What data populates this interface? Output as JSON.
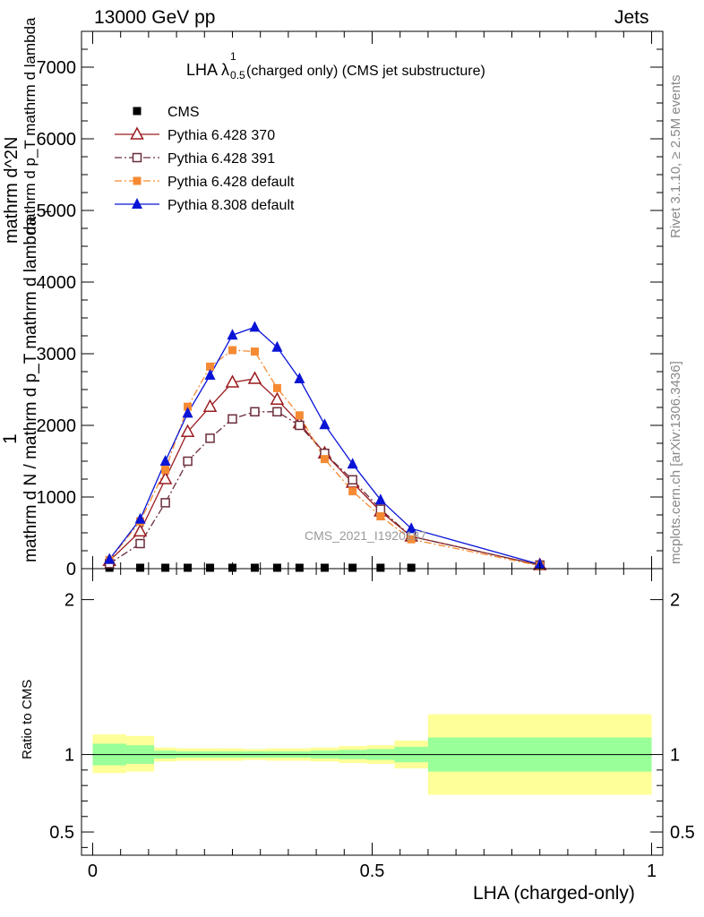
{
  "header": {
    "left": "13000 GeV pp",
    "right": "Jets"
  },
  "title_main": "LHA λ",
  "title_sup": "1",
  "title_sub": "0.5",
  "title_rest": "(charged only) (CMS jet substructure)",
  "side_top": "Rivet 3.1.10, ≥ 2.5M events",
  "side_bottom": "mcplots.cern.ch [arXiv:1306.3436]",
  "watermark": "CMS_2021_I1920187",
  "ylabel_main": {
    "num": "1",
    "den": "mathrm d N / mathrm d p_T mathrm d lambda",
    "den_sub": "T",
    "over_top": "mathrm d^2N",
    "over_mid": "mathrm d p_T mathrm d lambda"
  },
  "ylabel_ratio": "Ratio to CMS",
  "xlabel": "LHA (charged-only)",
  "colors": {
    "cms": "#000000",
    "p370": "#9b1b1f",
    "p391": "#6b2d3a",
    "pdef": "#f58a33",
    "p8": "#0a14d6",
    "band_inner": "#99ff99",
    "band_outer": "#ffff99"
  },
  "chart_data": [
    {
      "type": "line",
      "xlim": [
        -0.02,
        1.02
      ],
      "ylim": [
        0,
        7500
      ],
      "yticks": [
        {
          "v": 0,
          "label": "0"
        },
        {
          "v": 1000,
          "label": "1000"
        },
        {
          "v": 2000,
          "label": "2000"
        },
        {
          "v": 3000,
          "label": "3000"
        },
        {
          "v": 4000,
          "label": "4000"
        },
        {
          "v": 5000,
          "label": "5000"
        },
        {
          "v": 6000,
          "label": "6000"
        },
        {
          "v": 7000,
          "label": "7000"
        }
      ],
      "x": [
        0.03,
        0.085,
        0.13,
        0.17,
        0.21,
        0.25,
        0.29,
        0.33,
        0.37,
        0.415,
        0.465,
        0.515,
        0.57,
        0.8
      ],
      "series": [
        {
          "name": "CMS",
          "marker": "square-filled",
          "style": "none",
          "values": [
            20,
            20,
            20,
            20,
            20,
            20,
            20,
            20,
            20,
            20,
            20,
            20,
            20,
            null
          ]
        },
        {
          "name": "Pythia 6.428 370",
          "marker": "triangle-open",
          "style": "solid",
          "values": [
            110,
            520,
            1250,
            1910,
            2260,
            2600,
            2650,
            2360,
            2030,
            1610,
            1200,
            800,
            450,
            50
          ]
        },
        {
          "name": "Pythia 6.428 391",
          "marker": "square-open",
          "style": "dashdot",
          "values": [
            70,
            350,
            920,
            1500,
            1820,
            2090,
            2190,
            2190,
            2000,
            1610,
            1240,
            830,
            450,
            50
          ]
        },
        {
          "name": "Pythia 6.428 default",
          "marker": "square-filled",
          "style": "dashdot",
          "values": [
            120,
            660,
            1380,
            2260,
            2820,
            3050,
            3030,
            2520,
            2140,
            1530,
            1080,
            730,
            410,
            40
          ]
        },
        {
          "name": "Pythia 8.308 default",
          "marker": "triangle-filled",
          "style": "solid",
          "values": [
            130,
            690,
            1500,
            2170,
            2700,
            3260,
            3370,
            3090,
            2650,
            2010,
            1460,
            960,
            560,
            60
          ]
        }
      ]
    },
    {
      "type": "area",
      "xlim": [
        -0.02,
        1.02
      ],
      "ylim": [
        0.35,
        2.2
      ],
      "yticks": [
        {
          "v": 0.5,
          "label": "0.5"
        },
        {
          "v": 1,
          "label": "1"
        },
        {
          "v": 2,
          "label": "2"
        }
      ],
      "xticks": [
        {
          "v": 0,
          "label": "0"
        },
        {
          "v": 0.5,
          "label": "0.5"
        },
        {
          "v": 1,
          "label": "1"
        }
      ],
      "reference": 1,
      "bins": [
        {
          "x0": 0.0,
          "x1": 0.06,
          "inner": [
            0.93,
            1.07
          ],
          "outer": [
            0.88,
            1.13
          ]
        },
        {
          "x0": 0.06,
          "x1": 0.11,
          "inner": [
            0.94,
            1.06
          ],
          "outer": [
            0.89,
            1.12
          ]
        },
        {
          "x0": 0.11,
          "x1": 0.15,
          "inner": [
            0.975,
            1.025
          ],
          "outer": [
            0.955,
            1.045
          ]
        },
        {
          "x0": 0.15,
          "x1": 0.19,
          "inner": [
            0.98,
            1.02
          ],
          "outer": [
            0.96,
            1.04
          ]
        },
        {
          "x0": 0.19,
          "x1": 0.23,
          "inner": [
            0.98,
            1.02
          ],
          "outer": [
            0.96,
            1.04
          ]
        },
        {
          "x0": 0.23,
          "x1": 0.27,
          "inner": [
            0.98,
            1.02
          ],
          "outer": [
            0.96,
            1.04
          ]
        },
        {
          "x0": 0.27,
          "x1": 0.31,
          "inner": [
            0.98,
            1.02
          ],
          "outer": [
            0.965,
            1.035
          ]
        },
        {
          "x0": 0.31,
          "x1": 0.35,
          "inner": [
            0.98,
            1.02
          ],
          "outer": [
            0.96,
            1.04
          ]
        },
        {
          "x0": 0.35,
          "x1": 0.39,
          "inner": [
            0.98,
            1.02
          ],
          "outer": [
            0.96,
            1.04
          ]
        },
        {
          "x0": 0.39,
          "x1": 0.44,
          "inner": [
            0.975,
            1.025
          ],
          "outer": [
            0.955,
            1.045
          ]
        },
        {
          "x0": 0.44,
          "x1": 0.49,
          "inner": [
            0.97,
            1.03
          ],
          "outer": [
            0.945,
            1.055
          ]
        },
        {
          "x0": 0.49,
          "x1": 0.54,
          "inner": [
            0.965,
            1.035
          ],
          "outer": [
            0.94,
            1.06
          ]
        },
        {
          "x0": 0.54,
          "x1": 0.6,
          "inner": [
            0.95,
            1.05
          ],
          "outer": [
            0.91,
            1.09
          ]
        },
        {
          "x0": 0.6,
          "x1": 1.0,
          "inner": [
            0.89,
            1.11
          ],
          "outer": [
            0.74,
            1.26
          ]
        }
      ]
    }
  ]
}
